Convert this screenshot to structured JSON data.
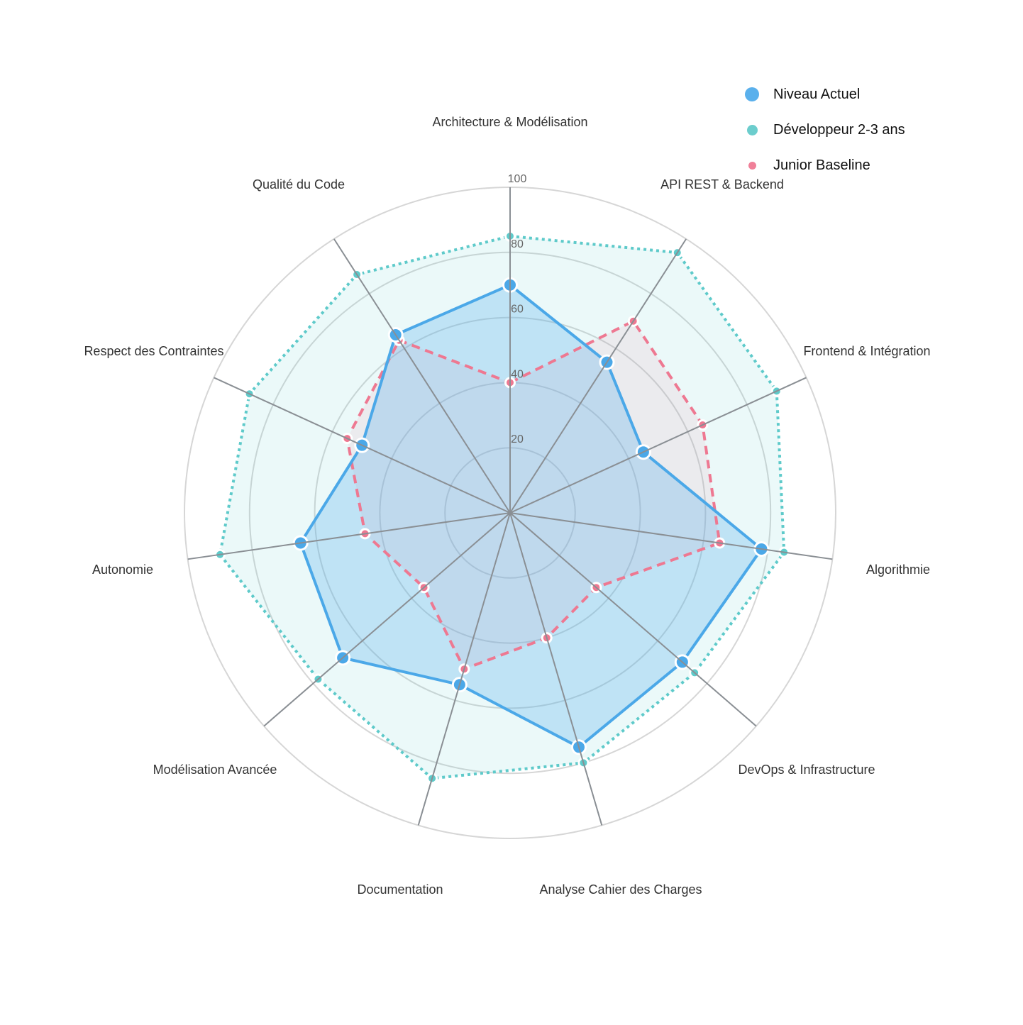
{
  "chart_data": {
    "type": "radar",
    "title": "",
    "categories": [
      "Architecture & Modélisation",
      "API REST & Backend",
      "Frontend & Intégration",
      "Algorithmie",
      "DevOps & Infrastructure",
      "Analyse Cahier des Charges",
      "Documentation",
      "Modélisation Avancée",
      "Autonomie",
      "Respect des Contraintes",
      "Qualité du Code"
    ],
    "series": [
      {
        "name": "Niveau Actuel",
        "color": "#4BA8E8",
        "fill": "rgba(91,176,235,0.30)",
        "line_style": "solid",
        "values": [
          70,
          55,
          45,
          78,
          70,
          75,
          55,
          68,
          65,
          50,
          65
        ]
      },
      {
        "name": "Développeur 2-3 ans",
        "color": "#5ECACA",
        "fill": "rgba(94,202,202,0.12)",
        "line_style": "dotted",
        "values": [
          85,
          95,
          90,
          85,
          75,
          80,
          85,
          78,
          90,
          88,
          87
        ]
      },
      {
        "name": "Junior Baseline",
        "color": "#EE7891",
        "fill": "rgba(238,120,145,0.10)",
        "line_style": "dashed",
        "values": [
          40,
          70,
          65,
          65,
          35,
          40,
          50,
          35,
          45,
          55,
          63
        ]
      }
    ],
    "radial_axis": {
      "range": [
        0,
        100
      ],
      "ticks": [
        20,
        40,
        60,
        80,
        100
      ],
      "tick_labels": [
        "20",
        "40",
        "60",
        "80",
        "100"
      ]
    },
    "grid": true,
    "legend_position": "top-right"
  },
  "legend": {
    "items": [
      {
        "label": "Niveau Actuel",
        "color": "#5AB0EC",
        "size": 20
      },
      {
        "label": "Développeur 2-3 ans",
        "color": "#6CCDCD",
        "size": 15
      },
      {
        "label": "Junior Baseline",
        "color": "#F08099",
        "size": 11
      }
    ]
  }
}
